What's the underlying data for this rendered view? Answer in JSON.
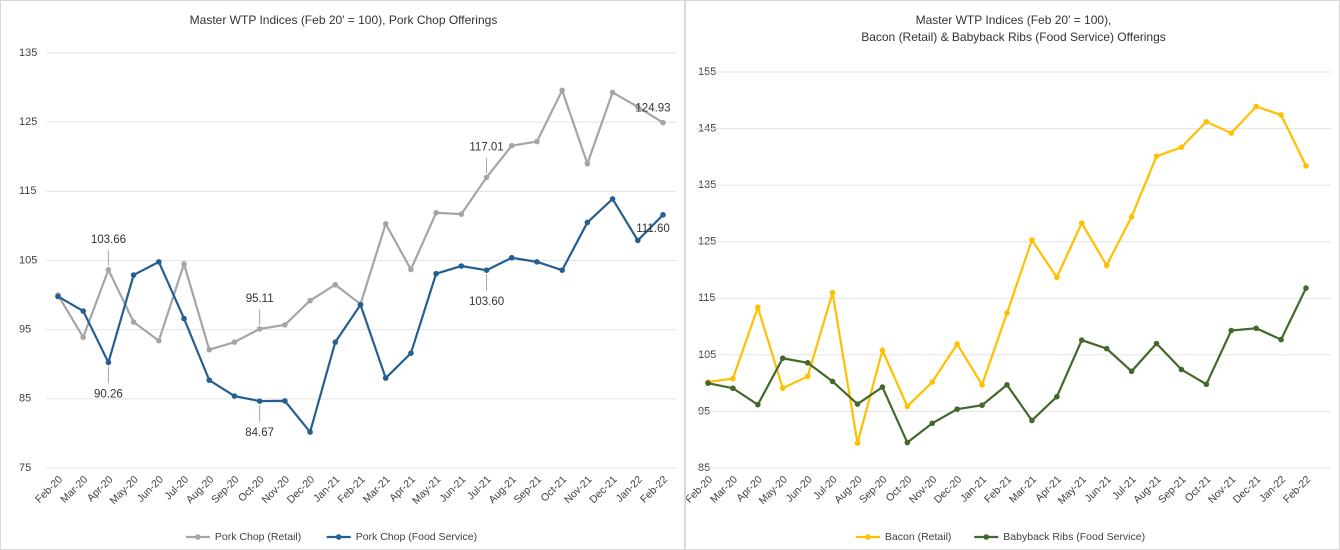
{
  "chart_data": [
    {
      "type": "line",
      "title": [
        "Master WTP Indices (Feb 20' = 100), Pork Chop Offerings"
      ],
      "categories": [
        "Feb-20",
        "Mar-20",
        "Apr-20",
        "May-20",
        "Jun-20",
        "Jul-20",
        "Aug-20",
        "Sep-20",
        "Oct-20",
        "Nov-20",
        "Dec-20",
        "Jan-21",
        "Feb-21",
        "Mar-21",
        "Apr-21",
        "May-21",
        "Jun-21",
        "Jul-21",
        "Aug-21",
        "Sep-21",
        "Oct-21",
        "Nov-21",
        "Dec-21",
        "Jan-22",
        "Feb-22"
      ],
      "ylim": [
        75,
        135
      ],
      "yticks": [
        75,
        85,
        95,
        105,
        115,
        125,
        135
      ],
      "grid": true,
      "series": [
        {
          "name": "Pork Chop (Retail)",
          "color": "#a5a5a5",
          "values": [
            100,
            93.9,
            103.66,
            96.1,
            93.4,
            104.5,
            92.1,
            93.2,
            95.11,
            95.7,
            99.2,
            101.5,
            98.7,
            110.3,
            103.7,
            111.9,
            111.7,
            117.01,
            121.6,
            122.2,
            129.6,
            119.0,
            129.3,
            127.2,
            124.93
          ],
          "value_labels": [
            null,
            null,
            "103.66",
            null,
            null,
            null,
            null,
            null,
            "95.11",
            null,
            null,
            null,
            null,
            null,
            null,
            null,
            null,
            "117.01",
            null,
            null,
            null,
            null,
            null,
            null,
            "124.93"
          ]
        },
        {
          "name": "Pork Chop (Food Service)",
          "color": "#255e91",
          "values": [
            99.8,
            97.7,
            90.26,
            102.9,
            104.8,
            96.6,
            87.7,
            85.4,
            84.67,
            84.7,
            80.2,
            93.2,
            98.6,
            88.0,
            91.6,
            103.1,
            104.2,
            103.6,
            105.4,
            104.8,
            103.6,
            110.5,
            113.9,
            107.9,
            111.6
          ],
          "value_labels": [
            null,
            null,
            "90.26",
            null,
            null,
            null,
            null,
            null,
            "84.67",
            null,
            null,
            null,
            null,
            null,
            null,
            null,
            null,
            "103.60",
            null,
            null,
            null,
            null,
            null,
            null,
            "111.60"
          ]
        }
      ]
    },
    {
      "type": "line",
      "title": [
        "Master WTP Indices (Feb 20' = 100),",
        "Bacon (Retail) & Babyback Ribs (Food Service) Offerings"
      ],
      "categories": [
        "Feb-20",
        "Mar-20",
        "Apr-20",
        "May-20",
        "Jun-20",
        "Jul-20",
        "Aug-20",
        "Sep-20",
        "Oct-20",
        "Nov-20",
        "Dec-20",
        "Jan-21",
        "Feb-21",
        "Mar-21",
        "Apr-21",
        "May-21",
        "Jun-21",
        "Jul-21",
        "Aug-21",
        "Sep-21",
        "Oct-21",
        "Nov-21",
        "Dec-21",
        "Jan-22",
        "Feb-22"
      ],
      "ylim": [
        85,
        155
      ],
      "yticks": [
        85,
        95,
        105,
        115,
        125,
        135,
        145,
        155
      ],
      "grid": true,
      "series": [
        {
          "name": "Bacon (Retail)",
          "color": "#ffc000",
          "values": [
            100.2,
            100.8,
            113.4,
            99.1,
            101.2,
            116.0,
            89.4,
            105.8,
            95.9,
            100.2,
            106.9,
            99.7,
            112.4,
            125.3,
            118.7,
            128.3,
            120.8,
            129.4,
            140.1,
            141.7,
            146.2,
            144.2,
            148.9,
            147.4,
            138.4
          ]
        },
        {
          "name": "Babyback Ribs (Food Service)",
          "color": "#43682b",
          "values": [
            100.0,
            99.1,
            96.2,
            104.4,
            103.6,
            100.3,
            96.3,
            99.3,
            89.5,
            92.9,
            95.4,
            96.1,
            99.7,
            93.4,
            97.6,
            107.6,
            106.1,
            102.1,
            107.0,
            102.4,
            99.8,
            109.3,
            109.7,
            107.7,
            116.8
          ]
        }
      ]
    }
  ]
}
